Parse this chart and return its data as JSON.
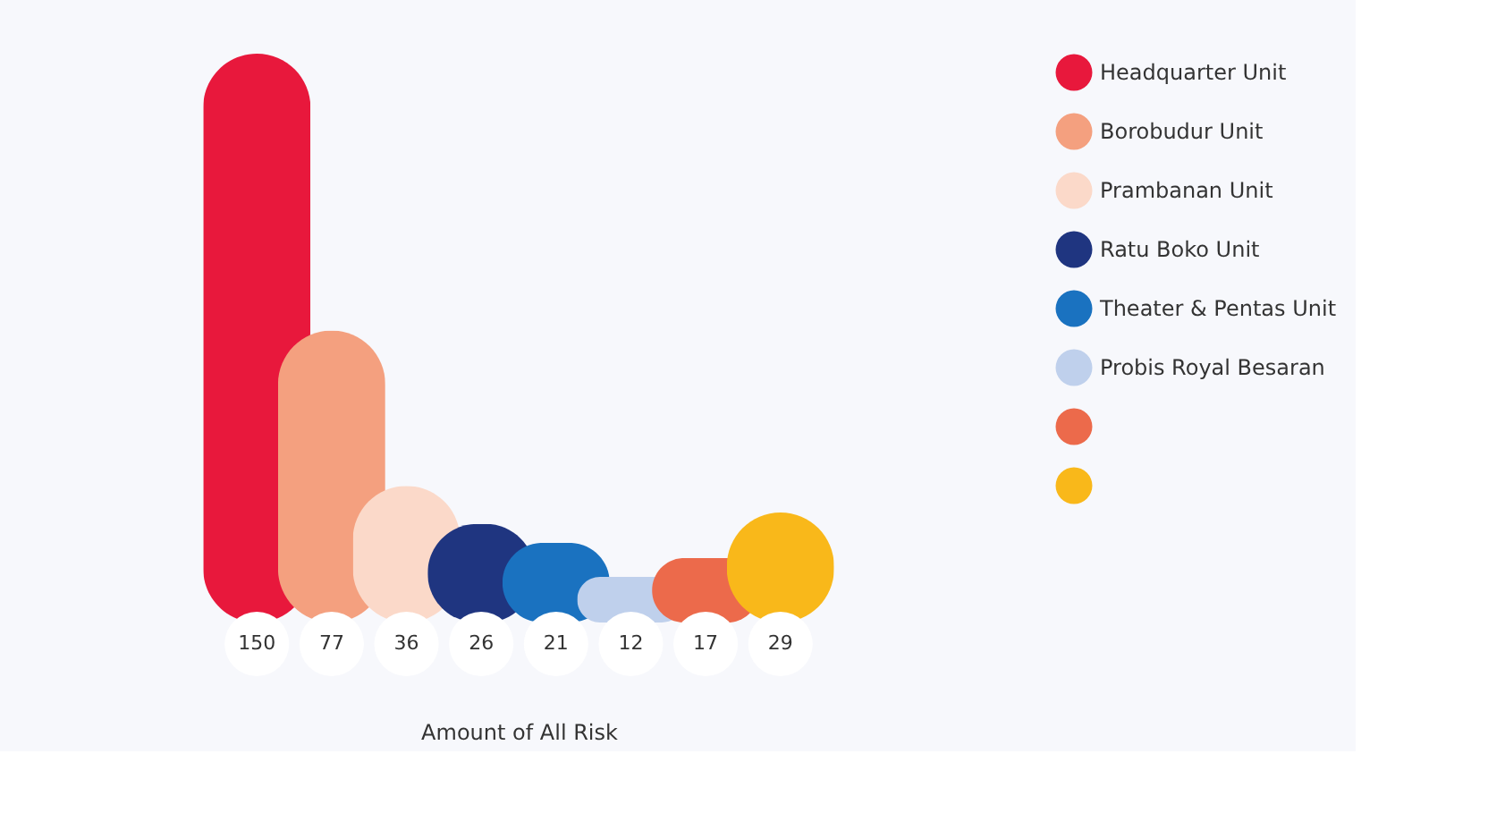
{
  "chart_data": {
    "type": "bar",
    "xlabel": "Amount of All Risk",
    "categories": [
      null
    ],
    "series": [
      {
        "name": "Headquarter Unit",
        "color": "#e8183c",
        "values": [
          150
        ]
      },
      {
        "name": "Borobudur Unit",
        "color": "#f4a07f",
        "values": [
          77
        ]
      },
      {
        "name": "Prambanan Unit",
        "color": "#fbd9c9",
        "values": [
          36
        ]
      },
      {
        "name": "Ratu Boko Unit",
        "color": "#1f3580",
        "values": [
          26
        ]
      },
      {
        "name": "Theater & Pentas Unit",
        "color": "#1a72c0",
        "values": [
          21
        ]
      },
      {
        "name": "Probis Royal Besaran",
        "color": "#bfd0ec",
        "values": [
          12
        ]
      },
      {
        "color": "#ec6a4b",
        "values": [
          17
        ]
      },
      {
        "color": "#f9b81a",
        "values": [
          29
        ]
      }
    ],
    "data_labels": true,
    "legend": "right"
  }
}
